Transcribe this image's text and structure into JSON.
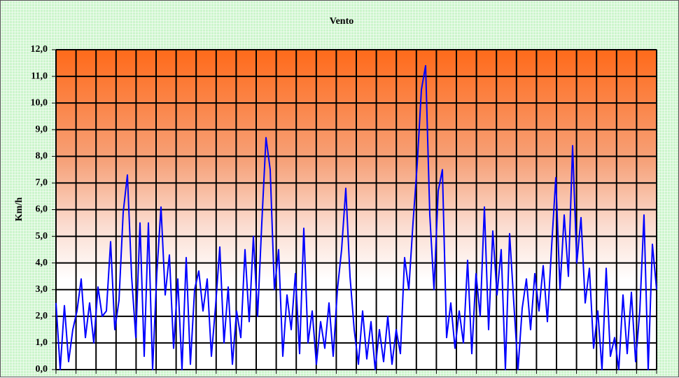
{
  "chart_data": {
    "type": "line",
    "title": "Vento",
    "y_label": "Km/h",
    "ylim": [
      0,
      12
    ],
    "yticks": [
      {
        "value": 0,
        "label": "0,0"
      },
      {
        "value": 1,
        "label": "1,0"
      },
      {
        "value": 2,
        "label": "2,0"
      },
      {
        "value": 3,
        "label": "3,0"
      },
      {
        "value": 4,
        "label": "4,0"
      },
      {
        "value": 5,
        "label": "5,0"
      },
      {
        "value": 6,
        "label": "6,0"
      },
      {
        "value": 7,
        "label": "7,0"
      },
      {
        "value": 8,
        "label": "8,0"
      },
      {
        "value": 9,
        "label": "9,0"
      },
      {
        "value": 10,
        "label": "10,0"
      },
      {
        "value": 11,
        "label": "11,0"
      },
      {
        "value": 12,
        "label": "12,0"
      }
    ],
    "grid": true,
    "color": "#0000ff",
    "values": [
      2.5,
      0,
      2.4,
      0.3,
      1.5,
      2.2,
      3.4,
      1.2,
      2.5,
      1.0,
      3.1,
      2.0,
      2.2,
      4.8,
      1.5,
      2.6,
      5.9,
      7.3,
      3.5,
      1.2,
      5.5,
      0.5,
      5.5,
      0,
      3.6,
      6.1,
      2.8,
      4.3,
      0.8,
      3.4,
      0,
      4.2,
      0.2,
      3.0,
      3.7,
      2.2,
      3.4,
      0.5,
      2.4,
      4.6,
      1.0,
      3.1,
      0.2,
      2.2,
      1.2,
      4.5,
      1.8,
      5.0,
      2.0,
      5.5,
      8.7,
      7.5,
      3.0,
      4.5,
      0.5,
      2.8,
      1.5,
      3.6,
      0.6,
      5.3,
      1.0,
      2.2,
      0.2,
      1.8,
      0.8,
      2.5,
      0.5,
      3.0,
      4.5,
      6.8,
      3.5,
      1.5,
      0.2,
      2.2,
      0.4,
      1.8,
      0,
      1.5,
      0.3,
      2.0,
      0.2,
      1.5,
      0.6,
      4.2,
      3.0,
      5.5,
      7.7,
      10.5,
      11.4,
      5.8,
      3.0,
      6.7,
      7.5,
      1.2,
      2.5,
      0.8,
      2.2,
      1.0,
      4.1,
      0.6,
      3.6,
      2.0,
      6.1,
      1.5,
      5.2,
      2.8,
      4.5,
      0,
      5.1,
      2.5,
      0,
      2.3,
      3.4,
      1.5,
      3.6,
      2.2,
      3.9,
      1.8,
      4.6,
      7.2,
      3.0,
      5.8,
      3.5,
      8.4,
      4.0,
      5.7,
      2.5,
      3.8,
      0.8,
      2.2,
      0,
      3.8,
      0.5,
      1.2,
      0,
      2.8,
      0.6,
      2.9,
      0.3,
      2.2,
      5.8,
      0,
      4.7,
      3.0
    ]
  }
}
